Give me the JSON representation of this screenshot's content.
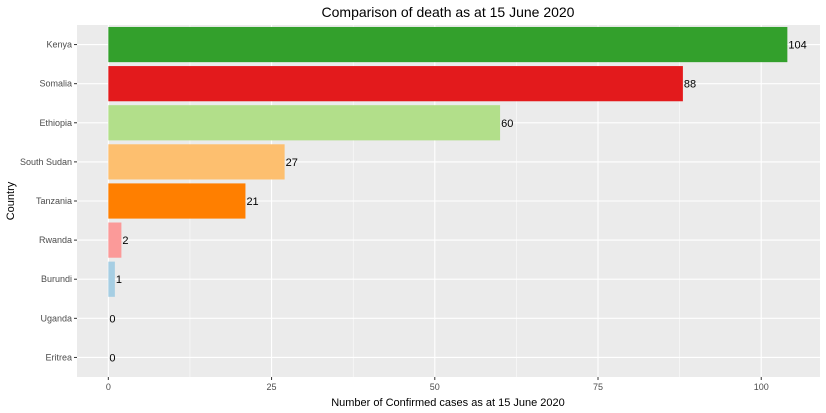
{
  "chart_data": {
    "type": "bar",
    "orientation": "horizontal",
    "title": "Comparison of death as at 15 June 2020",
    "xlabel": "Number of Confirmed cases as at 15 June 2020",
    "ylabel": "Country",
    "xlim": [
      -4.8,
      109
    ],
    "xticks": [
      "0",
      "25",
      "50",
      "75",
      "100"
    ],
    "categories": [
      "Kenya",
      "Somalia",
      "Ethiopia",
      "South Sudan",
      "Tanzania",
      "Rwanda",
      "Burundi",
      "Uganda",
      "Eritrea"
    ],
    "values": [
      104,
      88,
      60,
      27,
      21,
      2,
      1,
      0,
      0
    ],
    "data_labels": [
      "104",
      "88",
      "60",
      "27",
      "21",
      "2",
      "1",
      "0",
      "0"
    ],
    "colors": [
      "#33a02c",
      "#e31a1c",
      "#b2df8a",
      "#fdbf6f",
      "#ff7f00",
      "#fb9a99",
      "#a6cee3",
      "#1f78b4",
      "#6a3d9a"
    ],
    "grid": true,
    "legend": "none",
    "panel_background": "#ebebeb",
    "grid_color": "#ffffff"
  }
}
